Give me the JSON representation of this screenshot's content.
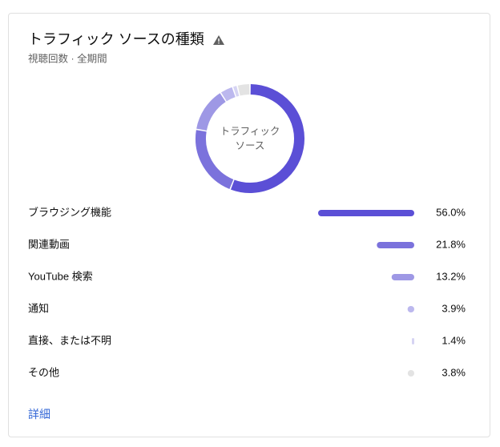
{
  "chart_data": {
    "type": "pie",
    "donut": true,
    "title": "トラフィック ソースの種類",
    "subtitle": "視聴回数 · 全期間",
    "center_label": "トラフィック ソース",
    "categories": [
      "ブラウジング機能",
      "関連動画",
      "YouTube 検索",
      "通知",
      "直接、または不明",
      "その他"
    ],
    "values": [
      56.0,
      21.8,
      13.2,
      3.9,
      1.4,
      3.8
    ],
    "value_labels": [
      "56.0%",
      "21.8%",
      "13.2%",
      "3.9%",
      "1.4%",
      "3.8%"
    ],
    "colors": [
      "#5b4fd6",
      "#7b72dc",
      "#9e98e5",
      "#bcb8ee",
      "#d6d4f3",
      "#e3e3e3"
    ],
    "link": "詳細"
  }
}
